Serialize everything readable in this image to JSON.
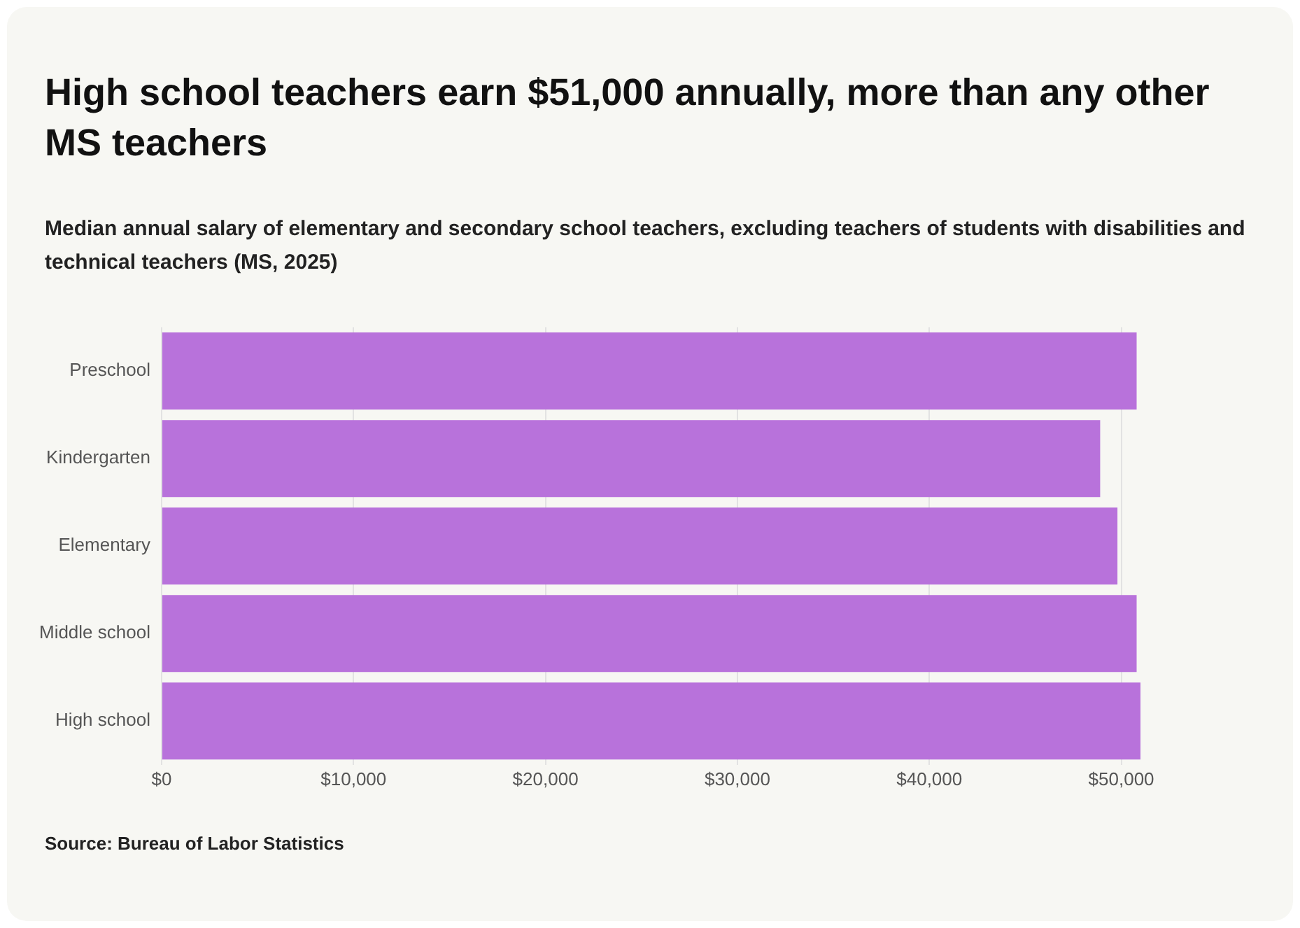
{
  "chart_data": {
    "type": "bar",
    "orientation": "horizontal",
    "title": "High school teachers earn $51,000 annually, more than any other MS teachers",
    "subtitle": "Median annual salary of elementary and secondary school teachers, excluding teachers of students with disabilities and technical teachers (MS, 2025)",
    "categories": [
      "Preschool",
      "Kindergarten",
      "Elementary",
      "Middle school",
      "High school"
    ],
    "values": [
      50800,
      48900,
      49800,
      50800,
      51000
    ],
    "color": "#b872db",
    "xticks": [
      {
        "value": 0,
        "label": "$0"
      },
      {
        "value": 10000,
        "label": "$10,000"
      },
      {
        "value": 20000,
        "label": "$20,000"
      },
      {
        "value": 30000,
        "label": "$30,000"
      },
      {
        "value": 40000,
        "label": "$40,000"
      },
      {
        "value": 50000,
        "label": "$50,000"
      }
    ],
    "xlim": [
      0,
      51000
    ],
    "grid": "x",
    "legend": false,
    "annotations": [
      "Source: Bureau of Labor Statistics"
    ]
  }
}
